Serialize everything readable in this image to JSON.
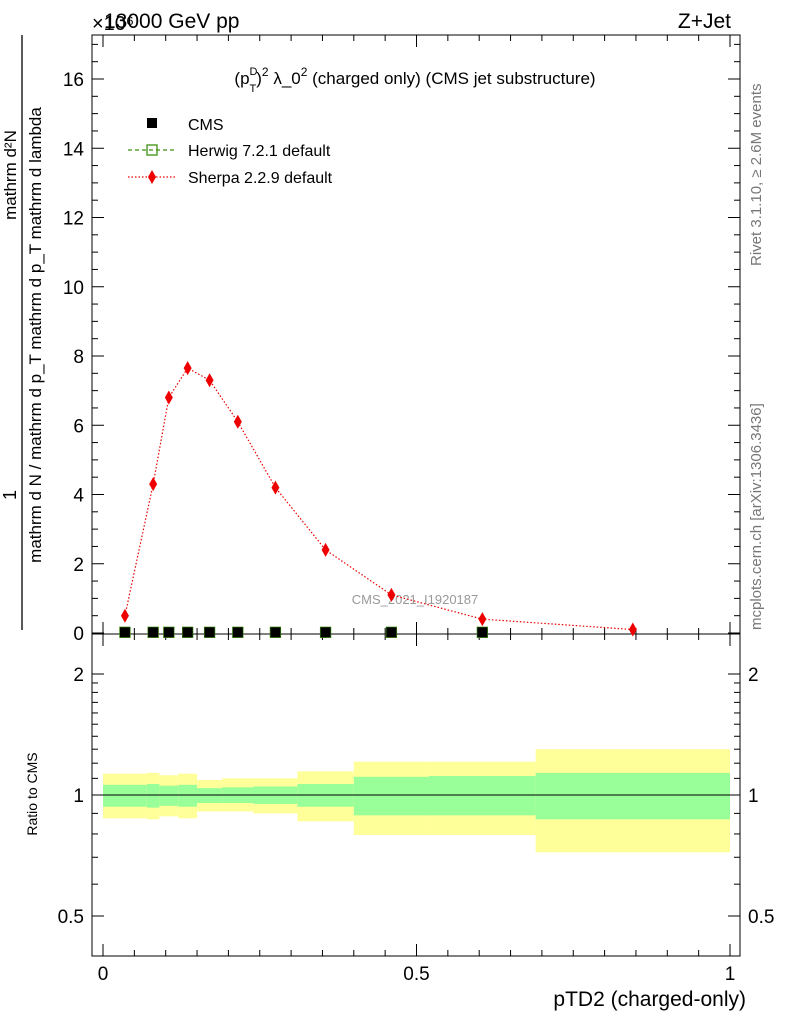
{
  "header": {
    "energy_label": "13000 GeV pp",
    "process_label": "Z+Jet",
    "exponent_label": "×10⁶",
    "side_label_rivet": "Rivet 3.1.10, ≥ 2.6M events",
    "side_label_mcplots": "mcplots.cern.ch [arXiv:1306.3436]",
    "watermark": "CMS_2021_I1920187"
  },
  "main_title": "(p_T^D)^2 λ_0^2 (charged only) (CMS jet substructure)",
  "top_ylabel": {
    "numerator": "1",
    "denominator": "mathrm d N / mathrm d p_T mathrm d p_T mathrm d lambda",
    "rhs": "mathrm d²N"
  },
  "ratio_ylabel": "Ratio to CMS",
  "xlabel": "pTD2 (charged-only)",
  "legend": [
    {
      "name": "CMS",
      "color": "#000000",
      "marker": "square"
    },
    {
      "name": "Herwig 7.2.1 default",
      "color": "#3c8f10",
      "marker": "open-square"
    },
    {
      "name": "Sherpa 2.2.9 default",
      "color": "#ee0000",
      "marker": "diamond"
    }
  ],
  "colors": {
    "band_inner": "#99ff99",
    "band_outer": "#ffff99",
    "sherpa": "#ee0000",
    "herwig": "#3c8f10",
    "data": "#000000"
  },
  "chart_data": [
    {
      "type": "line",
      "panel": "main",
      "xlim": [
        0,
        1
      ],
      "ylim": [
        0,
        17
      ],
      "y_multiplier": "×10⁶",
      "x_ticks": [
        0,
        0.5,
        1
      ],
      "x_tick_labels": [
        "0",
        "0.5",
        "1"
      ],
      "y_ticks": [
        0,
        2,
        4,
        6,
        8,
        10,
        12,
        14,
        16
      ],
      "y_tick_labels": [
        "0",
        "2",
        "4",
        "6",
        "8",
        "10",
        "12",
        "14",
        "16"
      ],
      "series": [
        {
          "name": "CMS",
          "x": [
            0.035,
            0.08,
            0.105,
            0.135,
            0.17,
            0.215,
            0.275,
            0.355,
            0.46,
            0.605
          ],
          "values": [
            0.02,
            0.02,
            0.02,
            0.02,
            0.02,
            0.02,
            0.02,
            0.02,
            0.02,
            0.02
          ]
        },
        {
          "name": "Herwig 7.2.1 default",
          "x": [
            0.035,
            0.08,
            0.105,
            0.135,
            0.17,
            0.215,
            0.275,
            0.355,
            0.46,
            0.605
          ],
          "values": [
            0.02,
            0.02,
            0.02,
            0.02,
            0.02,
            0.02,
            0.02,
            0.02,
            0.02,
            0.02
          ]
        },
        {
          "name": "Sherpa 2.2.9 default",
          "x": [
            0.035,
            0.08,
            0.105,
            0.135,
            0.17,
            0.215,
            0.275,
            0.355,
            0.46,
            0.605,
            0.845
          ],
          "values": [
            0.5,
            4.3,
            6.8,
            7.65,
            7.3,
            6.1,
            4.2,
            2.4,
            1.1,
            0.4,
            0.1
          ]
        }
      ]
    },
    {
      "type": "area",
      "panel": "ratio",
      "xlim": [
        0,
        1
      ],
      "ylim": [
        0.42,
        2.35
      ],
      "y_ticks": [
        0.5,
        1,
        2
      ],
      "y_tick_labels": [
        "0.5",
        "1",
        "2"
      ],
      "bins": [
        {
          "lo": 0.0,
          "hi": 0.07,
          "inner": [
            0.935,
            1.06
          ],
          "outer": [
            0.875,
            1.13
          ]
        },
        {
          "lo": 0.07,
          "hi": 0.09,
          "inner": [
            0.93,
            1.065
          ],
          "outer": [
            0.87,
            1.135
          ]
        },
        {
          "lo": 0.09,
          "hi": 0.12,
          "inner": [
            0.94,
            1.055
          ],
          "outer": [
            0.885,
            1.12
          ]
        },
        {
          "lo": 0.12,
          "hi": 0.15,
          "inner": [
            0.935,
            1.06
          ],
          "outer": [
            0.875,
            1.13
          ]
        },
        {
          "lo": 0.15,
          "hi": 0.19,
          "inner": [
            0.955,
            1.04
          ],
          "outer": [
            0.91,
            1.09
          ]
        },
        {
          "lo": 0.19,
          "hi": 0.24,
          "inner": [
            0.955,
            1.045
          ],
          "outer": [
            0.91,
            1.1
          ]
        },
        {
          "lo": 0.24,
          "hi": 0.31,
          "inner": [
            0.95,
            1.05
          ],
          "outer": [
            0.9,
            1.1
          ]
        },
        {
          "lo": 0.31,
          "hi": 0.4,
          "inner": [
            0.935,
            1.065
          ],
          "outer": [
            0.86,
            1.145
          ]
        },
        {
          "lo": 0.4,
          "hi": 0.52,
          "inner": [
            0.89,
            1.11
          ],
          "outer": [
            0.795,
            1.21
          ]
        },
        {
          "lo": 0.52,
          "hi": 0.69,
          "inner": [
            0.89,
            1.115
          ],
          "outer": [
            0.795,
            1.21
          ]
        },
        {
          "lo": 0.69,
          "hi": 1.0,
          "inner": [
            0.87,
            1.135
          ],
          "outer": [
            0.72,
            1.3
          ]
        }
      ]
    }
  ]
}
